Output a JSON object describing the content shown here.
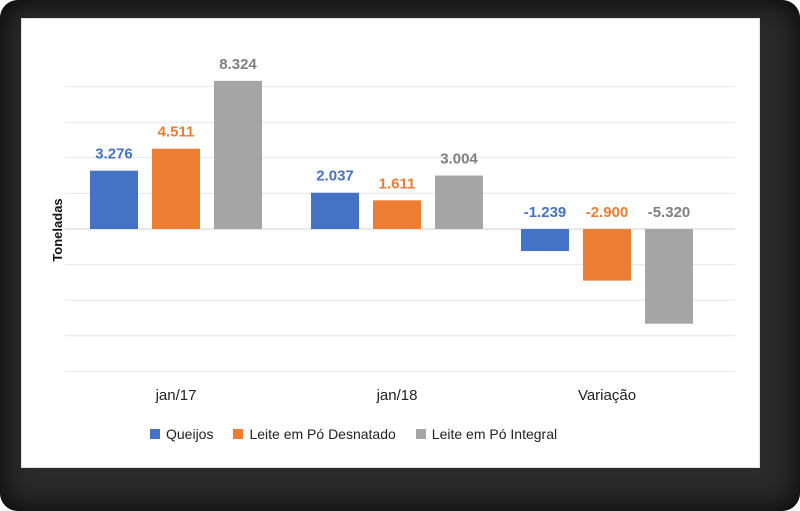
{
  "chart_data": {
    "type": "bar",
    "ylabel": "Toneladas",
    "xlabel": "",
    "categories": [
      "jan/17",
      "jan/18",
      "Variação"
    ],
    "series": [
      {
        "name": "Queijos",
        "color": "#4472c4",
        "values": [
          3276,
          2037,
          -1239
        ],
        "labels": [
          "3.276",
          "2.037",
          "-1.239"
        ]
      },
      {
        "name": "Leite em Pó Desnatado",
        "color": "#ed7d31",
        "values": [
          4511,
          1611,
          -2900
        ],
        "labels": [
          "4.511",
          "1.611",
          "-2.900"
        ]
      },
      {
        "name": "Leite em Pó Integral",
        "color": "#a5a5a5",
        "values": [
          8324,
          3004,
          -5320
        ],
        "labels": [
          "8.324",
          "3.004",
          "-5.320"
        ]
      }
    ],
    "label_colors": [
      "#4472c4",
      "#ed7d31",
      "#7f7f7f"
    ],
    "ylim": [
      -8000,
      8000
    ],
    "grid": true,
    "legend_position": "bottom"
  }
}
